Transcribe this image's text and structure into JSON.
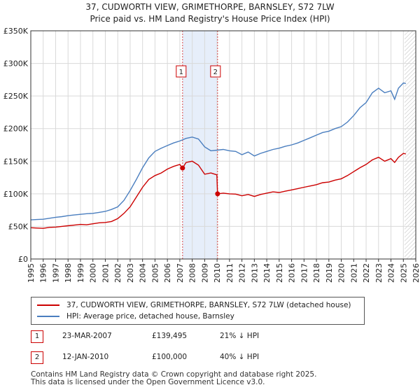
{
  "title_line1": "37, CUDWORTH VIEW, GRIMETHORPE, BARNSLEY, S72 7LW",
  "title_line2": "Price paid vs. HM Land Registry's House Price Index (HPI)",
  "colors": {
    "property": "#cc0000",
    "hpi": "#4a7ebf",
    "band": "#e6eefa",
    "grid": "#d9d9d9",
    "marker_border": "#cc0000"
  },
  "chart_data": {
    "type": "line",
    "title": "Price paid vs. HM Land Registry's House Price Index (HPI)",
    "xlim": [
      1995,
      2026
    ],
    "ylim": [
      0,
      350000
    ],
    "x_ticks": [
      "1995",
      "1996",
      "1997",
      "1998",
      "1999",
      "2000",
      "2001",
      "2002",
      "2003",
      "2004",
      "2005",
      "2006",
      "2007",
      "2008",
      "2009",
      "2010",
      "2011",
      "2012",
      "2013",
      "2014",
      "2015",
      "2016",
      "2017",
      "2018",
      "2019",
      "2020",
      "2021",
      "2022",
      "2023",
      "2024",
      "2025",
      "2026"
    ],
    "y_ticks": [
      {
        "value": 0,
        "label": "£0"
      },
      {
        "value": 50000,
        "label": "£50K"
      },
      {
        "value": 100000,
        "label": "£100K"
      },
      {
        "value": 150000,
        "label": "£150K"
      },
      {
        "value": 200000,
        "label": "£200K"
      },
      {
        "value": 250000,
        "label": "£250K"
      },
      {
        "value": 300000,
        "label": "£300K"
      },
      {
        "value": 350000,
        "label": "£350K"
      }
    ],
    "shaded_band": [
      2007.22,
      2010.04
    ],
    "future_hatch_from": 2025.1,
    "series": [
      {
        "name": "37, CUDWORTH VIEW, GRIMETHORPE, BARNSLEY, S72 7LW (detached house)",
        "points": [
          [
            1995,
            48000
          ],
          [
            1995.5,
            47500
          ],
          [
            1996,
            47000
          ],
          [
            1996.5,
            48500
          ],
          [
            1997,
            49000
          ],
          [
            1997.5,
            50000
          ],
          [
            1998,
            51000
          ],
          [
            1998.5,
            52000
          ],
          [
            1999,
            53000
          ],
          [
            1999.5,
            52500
          ],
          [
            2000,
            54000
          ],
          [
            2000.5,
            55500
          ],
          [
            2001,
            56000
          ],
          [
            2001.5,
            57500
          ],
          [
            2002,
            62000
          ],
          [
            2002.5,
            70000
          ],
          [
            2003,
            80000
          ],
          [
            2003.5,
            95000
          ],
          [
            2004,
            110000
          ],
          [
            2004.5,
            122000
          ],
          [
            2005,
            128000
          ],
          [
            2005.5,
            132000
          ],
          [
            2006,
            138000
          ],
          [
            2006.5,
            142000
          ],
          [
            2007,
            145000
          ],
          [
            2007.22,
            139495
          ],
          [
            2007.5,
            148000
          ],
          [
            2008,
            150000
          ],
          [
            2008.5,
            144000
          ],
          [
            2009,
            130000
          ],
          [
            2009.5,
            132000
          ],
          [
            2009.98,
            129000
          ],
          [
            2010.04,
            100000
          ],
          [
            2010.5,
            101000
          ],
          [
            2011,
            100000
          ],
          [
            2011.5,
            99500
          ],
          [
            2012,
            97000
          ],
          [
            2012.5,
            99000
          ],
          [
            2013,
            96000
          ],
          [
            2013.5,
            99000
          ],
          [
            2014,
            101000
          ],
          [
            2014.5,
            103000
          ],
          [
            2015,
            102000
          ],
          [
            2015.5,
            104000
          ],
          [
            2016,
            106000
          ],
          [
            2016.5,
            108000
          ],
          [
            2017,
            110000
          ],
          [
            2017.5,
            112000
          ],
          [
            2018,
            114000
          ],
          [
            2018.5,
            117000
          ],
          [
            2019,
            118000
          ],
          [
            2019.5,
            121000
          ],
          [
            2020,
            123000
          ],
          [
            2020.5,
            128000
          ],
          [
            2021,
            134000
          ],
          [
            2021.5,
            140000
          ],
          [
            2022,
            145000
          ],
          [
            2022.5,
            152000
          ],
          [
            2023,
            156000
          ],
          [
            2023.5,
            150000
          ],
          [
            2024,
            154000
          ],
          [
            2024.3,
            148000
          ],
          [
            2024.6,
            156000
          ],
          [
            2025,
            162000
          ],
          [
            2025.2,
            161000
          ]
        ]
      },
      {
        "name": "HPI: Average price, detached house, Barnsley",
        "points": [
          [
            1995,
            60000
          ],
          [
            1995.5,
            60500
          ],
          [
            1996,
            61000
          ],
          [
            1996.5,
            62500
          ],
          [
            1997,
            64000
          ],
          [
            1997.5,
            65000
          ],
          [
            1998,
            66500
          ],
          [
            1998.5,
            67500
          ],
          [
            1999,
            68500
          ],
          [
            1999.5,
            69500
          ],
          [
            2000,
            70000
          ],
          [
            2000.5,
            71500
          ],
          [
            2001,
            73000
          ],
          [
            2001.5,
            76000
          ],
          [
            2002,
            80000
          ],
          [
            2002.5,
            90000
          ],
          [
            2003,
            105000
          ],
          [
            2003.5,
            122000
          ],
          [
            2004,
            140000
          ],
          [
            2004.5,
            155000
          ],
          [
            2005,
            165000
          ],
          [
            2005.5,
            170000
          ],
          [
            2006,
            174000
          ],
          [
            2006.5,
            178000
          ],
          [
            2007,
            181000
          ],
          [
            2007.5,
            185000
          ],
          [
            2008,
            187000
          ],
          [
            2008.5,
            184000
          ],
          [
            2009,
            172000
          ],
          [
            2009.5,
            166000
          ],
          [
            2010,
            167000
          ],
          [
            2010.5,
            168000
          ],
          [
            2011,
            166000
          ],
          [
            2011.5,
            165000
          ],
          [
            2012,
            160000
          ],
          [
            2012.5,
            164000
          ],
          [
            2013,
            158000
          ],
          [
            2013.5,
            162000
          ],
          [
            2014,
            165000
          ],
          [
            2014.5,
            168000
          ],
          [
            2015,
            170000
          ],
          [
            2015.5,
            173000
          ],
          [
            2016,
            175000
          ],
          [
            2016.5,
            178000
          ],
          [
            2017,
            182000
          ],
          [
            2017.5,
            186000
          ],
          [
            2018,
            190000
          ],
          [
            2018.5,
            194000
          ],
          [
            2019,
            196000
          ],
          [
            2019.5,
            200000
          ],
          [
            2020,
            203000
          ],
          [
            2020.5,
            210000
          ],
          [
            2021,
            220000
          ],
          [
            2021.5,
            232000
          ],
          [
            2022,
            240000
          ],
          [
            2022.5,
            255000
          ],
          [
            2023,
            262000
          ],
          [
            2023.5,
            255000
          ],
          [
            2024,
            258000
          ],
          [
            2024.3,
            245000
          ],
          [
            2024.6,
            262000
          ],
          [
            2025,
            270000
          ],
          [
            2025.2,
            269000
          ]
        ]
      }
    ],
    "sales": [
      {
        "label": "1",
        "x": 2007.22,
        "y": 139495
      },
      {
        "label": "2",
        "x": 2010.04,
        "y": 100000
      }
    ]
  },
  "legend": {
    "property_label": "37, CUDWORTH VIEW, GRIMETHORPE, BARNSLEY, S72 7LW (detached house)",
    "hpi_label": "HPI: Average price, detached house, Barnsley"
  },
  "sales_table": [
    {
      "num": "1",
      "date": "23-MAR-2007",
      "price": "£139,495",
      "hpi": "21% ↓ HPI"
    },
    {
      "num": "2",
      "date": "12-JAN-2010",
      "price": "£100,000",
      "hpi": "40% ↓ HPI"
    }
  ],
  "footer_line1": "Contains HM Land Registry data © Crown copyright and database right 2025.",
  "footer_line2": "This data is licensed under the Open Government Licence v3.0."
}
